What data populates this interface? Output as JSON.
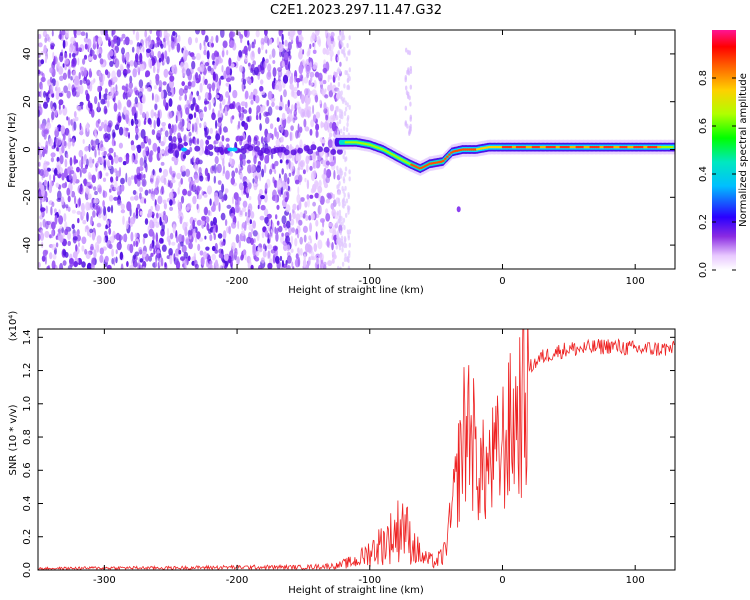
{
  "title": "C2E1.2023.297.11.47.G32",
  "chart_data": [
    {
      "type": "heatmap",
      "xlabel": "Height of straight line (km)",
      "ylabel": "Frequency (Hz)",
      "xlim": [
        -350,
        130
      ],
      "ylim": [
        -50,
        50
      ],
      "x_ticks": [
        -300,
        -200,
        -100,
        0,
        100
      ],
      "x_tick_labels": [
        "-300",
        "-200",
        "-100",
        "0",
        "100"
      ],
      "y_ticks": [
        -40,
        -20,
        0,
        20,
        40
      ],
      "y_tick_labels": [
        "-40",
        "-20",
        "0",
        "20",
        "40"
      ],
      "colorbar": {
        "label": "Normalized spectral amplitude",
        "range": [
          0,
          1
        ],
        "ticks": [
          0.0,
          0.2,
          0.4,
          0.6,
          0.8
        ],
        "tick_labels": [
          "0.0",
          "0.2",
          "0.4",
          "0.6",
          "0.8"
        ]
      },
      "ridge_trace": {
        "description_values": "center frequency (Hz) vs height (km)",
        "x": [
          -120,
          -110,
          -100,
          -90,
          -80,
          -70,
          -62,
          -55,
          -45,
          -38,
          -30,
          -20,
          -10,
          0,
          20,
          50,
          80,
          100,
          128
        ],
        "y": [
          3,
          3,
          2,
          0,
          -3,
          -6,
          -8,
          -6,
          -5,
          -1,
          0,
          0,
          1,
          1,
          1,
          1,
          1,
          1,
          1
        ]
      },
      "grid": false
    },
    {
      "type": "line",
      "xlabel": "Height of straight line (km)",
      "ylabel": "SNR (10 * v/v)",
      "y_multiplier": "(x10⁴)",
      "xlim": [
        -350,
        130
      ],
      "ylim": [
        0,
        1.45
      ],
      "x_ticks": [
        -300,
        -200,
        -100,
        0,
        100
      ],
      "x_tick_labels": [
        "-300",
        "-200",
        "-100",
        "0",
        "100"
      ],
      "y_ticks": [
        0.0,
        0.2,
        0.4,
        0.6,
        0.8,
        1.0,
        1.2,
        1.4
      ],
      "y_tick_labels": [
        "0.0",
        "0.2",
        "0.4",
        "0.6",
        "0.8",
        "1.0",
        "1.2",
        "1.4"
      ],
      "color": "#ee2222",
      "series": [
        {
          "x": [
            -350,
            -300,
            -250,
            -200,
            -150,
            -125,
            -110,
            -100,
            -90,
            -80,
            -75,
            -70,
            -60,
            -50,
            -45,
            -40,
            -35,
            -30,
            -25,
            -20,
            -15,
            -10,
            -5,
            0,
            5,
            10,
            20,
            30,
            40,
            50,
            60,
            80,
            100,
            128
          ],
          "y": [
            0.01,
            0.015,
            0.015,
            0.02,
            0.02,
            0.03,
            0.06,
            0.12,
            0.18,
            0.25,
            0.33,
            0.2,
            0.08,
            0.05,
            0.1,
            0.3,
            0.6,
            0.95,
            1.1,
            0.8,
            0.7,
            0.75,
            0.8,
            0.9,
            1.0,
            1.1,
            1.28,
            1.35,
            1.38,
            1.4,
            1.4,
            1.42,
            1.4,
            1.4
          ]
        }
      ],
      "grid": false
    }
  ]
}
